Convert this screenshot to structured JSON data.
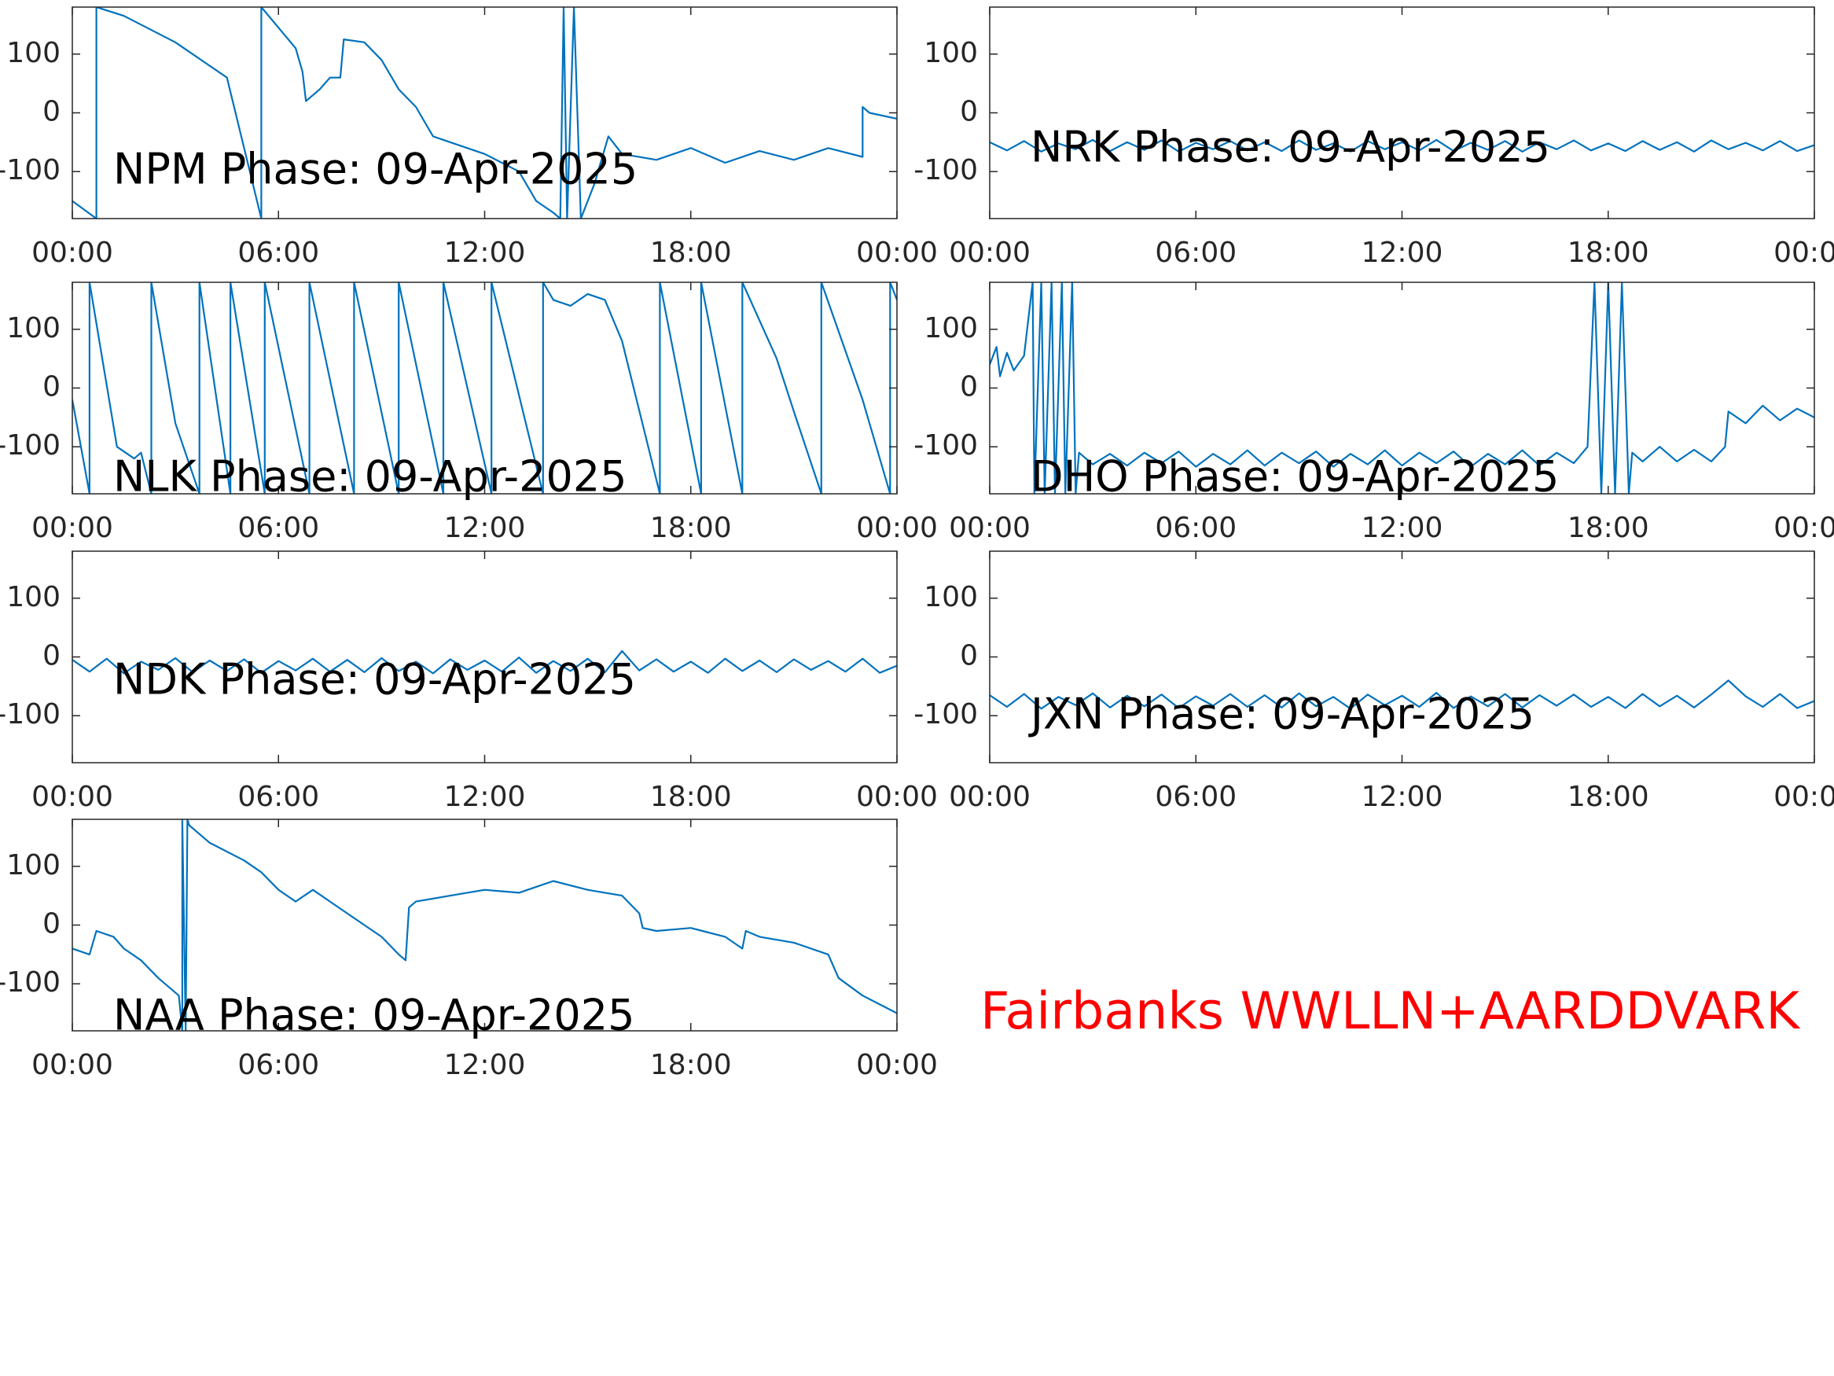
{
  "chart_data": [
    {
      "type": "line",
      "title": "NPM Phase: 09-Apr-2025",
      "color": "#0072bd",
      "x": [
        0,
        0.7,
        0.7,
        1.5,
        3,
        4.5,
        5.5,
        5.5,
        6.5,
        6.7,
        6.8,
        7.2,
        7.5,
        7.8,
        7.9,
        8.5,
        9,
        9.5,
        10,
        10.5,
        11,
        12,
        13,
        13.5,
        14,
        14.2,
        14.3,
        14.4,
        14.6,
        14.8,
        15.2,
        15.6,
        16,
        17,
        18,
        19,
        20,
        21,
        22,
        23,
        23,
        23.2,
        24
      ],
      "values": [
        -150,
        -180,
        180,
        165,
        120,
        60,
        -180,
        180,
        110,
        70,
        20,
        40,
        60,
        60,
        125,
        120,
        90,
        40,
        10,
        -40,
        -50,
        -70,
        -100,
        -150,
        -170,
        -180,
        180,
        -180,
        180,
        -180,
        -120,
        -40,
        -70,
        -80,
        -60,
        -85,
        -65,
        -80,
        -60,
        -75,
        10,
        0,
        -10
      ],
      "xlim": [
        0,
        24
      ],
      "xticks": [
        {
          "value": 0,
          "label": "00:00"
        },
        {
          "value": 6,
          "label": "06:00"
        },
        {
          "value": 12,
          "label": "12:00"
        },
        {
          "value": 18,
          "label": "18:00"
        },
        {
          "value": 24,
          "label": "00:00"
        }
      ],
      "ylim": [
        -180,
        180
      ],
      "yticks": [
        -100,
        0,
        100
      ]
    },
    {
      "type": "line",
      "title": "NRK Phase: 09-Apr-2025",
      "color": "#0072bd",
      "x": [
        0,
        0.5,
        1,
        1.5,
        2,
        2.5,
        3,
        3.5,
        4,
        4.5,
        5,
        5.5,
        6,
        6.5,
        7,
        7.5,
        8,
        8.5,
        9,
        9.5,
        10,
        10.5,
        11,
        11.5,
        12,
        12.5,
        13,
        13.5,
        14,
        14.5,
        15,
        15.5,
        16,
        16.5,
        17,
        17.5,
        18,
        18.5,
        19,
        19.5,
        20,
        20.5,
        21,
        21.5,
        22,
        22.5,
        23,
        23.5,
        24
      ],
      "values": [
        -50,
        -64,
        -48,
        -66,
        -52,
        -62,
        -46,
        -65,
        -50,
        -63,
        -47,
        -66,
        -51,
        -62,
        -48,
        -64,
        -50,
        -65,
        -47,
        -63,
        -52,
        -66,
        -48,
        -62,
        -50,
        -64,
        -46,
        -65,
        -51,
        -63,
        -48,
        -66,
        -50,
        -62,
        -47,
        -64,
        -52,
        -65,
        -48,
        -63,
        -50,
        -66,
        -47,
        -62,
        -51,
        -64,
        -48,
        -65,
        -55
      ],
      "xlim": [
        0,
        24
      ],
      "xticks": [
        {
          "value": 0,
          "label": "00:00"
        },
        {
          "value": 6,
          "label": "06:00"
        },
        {
          "value": 12,
          "label": "12:00"
        },
        {
          "value": 18,
          "label": "18:00"
        },
        {
          "value": 24,
          "label": "00:00"
        }
      ],
      "ylim": [
        -180,
        180
      ],
      "yticks": [
        -100,
        0,
        100
      ]
    },
    {
      "type": "line",
      "title": "NLK Phase: 09-Apr-2025",
      "color": "#0072bd",
      "x": [
        0,
        0.5,
        0.5,
        1.3,
        1.8,
        2.0,
        2.3,
        2.3,
        3.0,
        3.7,
        3.7,
        4.6,
        4.6,
        5.6,
        5.6,
        6.9,
        6.9,
        8.2,
        8.2,
        9.5,
        9.5,
        10.8,
        10.8,
        12.2,
        12.2,
        13.7,
        13.7,
        14,
        14.5,
        15,
        15.5,
        16,
        17.1,
        17.1,
        18.3,
        18.3,
        19.5,
        19.5,
        20.5,
        21,
        21.8,
        21.8,
        23.0,
        23.8,
        23.8,
        24
      ],
      "values": [
        -20,
        -180,
        180,
        -100,
        -120,
        -110,
        -180,
        180,
        -60,
        -180,
        180,
        -180,
        180,
        -180,
        180,
        -180,
        180,
        -180,
        180,
        -180,
        180,
        -180,
        180,
        -180,
        180,
        -180,
        180,
        150,
        140,
        160,
        150,
        80,
        -180,
        180,
        -180,
        180,
        -180,
        180,
        50,
        -40,
        -180,
        180,
        -20,
        -180,
        180,
        150
      ],
      "xlim": [
        0,
        24
      ],
      "xticks": [
        {
          "value": 0,
          "label": "00:00"
        },
        {
          "value": 6,
          "label": "06:00"
        },
        {
          "value": 12,
          "label": "12:00"
        },
        {
          "value": 18,
          "label": "18:00"
        },
        {
          "value": 24,
          "label": "00:00"
        }
      ],
      "ylim": [
        -180,
        180
      ],
      "yticks": [
        -100,
        0,
        100
      ]
    },
    {
      "type": "line",
      "title": "DHO Phase: 09-Apr-2025",
      "color": "#0072bd",
      "x": [
        0,
        0.2,
        0.3,
        0.5,
        0.7,
        1,
        1.25,
        1.3,
        1.5,
        1.6,
        1.8,
        1.9,
        2.1,
        2.2,
        2.4,
        2.5,
        2.6,
        3,
        3.5,
        4,
        4.5,
        5,
        5.5,
        6,
        6.5,
        7,
        7.5,
        8,
        8.5,
        9,
        9.5,
        10,
        10.5,
        11,
        11.5,
        12,
        12.5,
        13,
        13.5,
        14,
        14.5,
        15,
        15.5,
        16,
        16.5,
        17,
        17.4,
        17.6,
        17.8,
        18,
        18.2,
        18.4,
        18.6,
        18.7,
        19,
        19.5,
        20,
        20.5,
        21,
        21.4,
        21.5,
        22,
        22.5,
        23,
        23.5,
        24
      ],
      "values": [
        40,
        70,
        20,
        60,
        30,
        55,
        180,
        -180,
        180,
        -180,
        180,
        -180,
        180,
        -180,
        180,
        -180,
        -110,
        -130,
        -112,
        -132,
        -110,
        -128,
        -108,
        -134,
        -112,
        -130,
        -106,
        -132,
        -110,
        -128,
        -108,
        -134,
        -112,
        -130,
        -106,
        -132,
        -110,
        -128,
        -108,
        -134,
        -112,
        -130,
        -106,
        -132,
        -110,
        -128,
        -100,
        180,
        -180,
        180,
        -180,
        180,
        -180,
        -110,
        -125,
        -100,
        -125,
        -105,
        -125,
        -100,
        -40,
        -60,
        -30,
        -55,
        -35,
        -50
      ],
      "xlim": [
        0,
        24
      ],
      "xticks": [
        {
          "value": 0,
          "label": "00:00"
        },
        {
          "value": 6,
          "label": "06:00"
        },
        {
          "value": 12,
          "label": "12:00"
        },
        {
          "value": 18,
          "label": "18:00"
        },
        {
          "value": 24,
          "label": "00:00"
        }
      ],
      "ylim": [
        -180,
        180
      ],
      "yticks": [
        -100,
        0,
        100
      ]
    },
    {
      "type": "line",
      "title": "NDK Phase: 09-Apr-2025",
      "color": "#0072bd",
      "x": [
        0,
        0.5,
        1,
        1.5,
        2,
        2.5,
        3,
        3.5,
        4,
        4.5,
        5,
        5.5,
        6,
        6.5,
        7,
        7.5,
        8,
        8.5,
        9,
        9.5,
        10,
        10.5,
        11,
        11.5,
        12,
        12.5,
        13,
        13.5,
        14,
        14.5,
        15,
        15.5,
        16,
        16.5,
        17,
        17.5,
        18,
        18.5,
        19,
        19.5,
        20,
        20.5,
        21,
        21.5,
        22,
        22.5,
        23,
        23.5,
        24
      ],
      "values": [
        -5,
        -25,
        -3,
        -28,
        -8,
        -22,
        -2,
        -26,
        -6,
        -24,
        -4,
        -27,
        -7,
        -23,
        -3,
        -25,
        -5,
        -26,
        -2,
        -24,
        -8,
        -28,
        -4,
        -22,
        -6,
        -25,
        -1,
        -27,
        -7,
        -24,
        -3,
        -26,
        10,
        -23,
        -4,
        -25,
        -8,
        -27,
        -3,
        -24,
        -6,
        -26,
        -4,
        -22,
        -7,
        -25,
        -3,
        -27,
        -15
      ],
      "xlim": [
        0,
        24
      ],
      "xticks": [
        {
          "value": 0,
          "label": "00:00"
        },
        {
          "value": 6,
          "label": "06:00"
        },
        {
          "value": 12,
          "label": "12:00"
        },
        {
          "value": 18,
          "label": "18:00"
        },
        {
          "value": 24,
          "label": "00:00"
        }
      ],
      "ylim": [
        -180,
        180
      ],
      "yticks": [
        -100,
        0,
        100
      ]
    },
    {
      "type": "line",
      "title": "JXN Phase: 09-Apr-2025",
      "color": "#0072bd",
      "x": [
        0,
        0.5,
        1,
        1.5,
        2,
        2.5,
        3,
        3.5,
        4,
        4.5,
        5,
        5.5,
        6,
        6.5,
        7,
        7.5,
        8,
        8.5,
        9,
        9.5,
        10,
        10.5,
        11,
        11.5,
        12,
        12.5,
        13,
        13.5,
        14,
        14.5,
        15,
        15.5,
        16,
        16.5,
        17,
        17.5,
        18,
        18.5,
        19,
        19.5,
        20,
        20.5,
        21,
        21.5,
        22,
        22.5,
        23,
        23.5,
        24
      ],
      "values": [
        -65,
        -85,
        -63,
        -88,
        -68,
        -82,
        -62,
        -86,
        -66,
        -84,
        -64,
        -87,
        -67,
        -83,
        -63,
        -85,
        -65,
        -86,
        -62,
        -84,
        -68,
        -88,
        -64,
        -82,
        -66,
        -85,
        -61,
        -87,
        -67,
        -84,
        -63,
        -86,
        -65,
        -83,
        -64,
        -85,
        -68,
        -87,
        -63,
        -84,
        -66,
        -86,
        -64,
        -40,
        -67,
        -85,
        -63,
        -87,
        -75
      ],
      "xlim": [
        0,
        24
      ],
      "xticks": [
        {
          "value": 0,
          "label": "00:00"
        },
        {
          "value": 6,
          "label": "06:00"
        },
        {
          "value": 12,
          "label": "12:00"
        },
        {
          "value": 18,
          "label": "18:00"
        },
        {
          "value": 24,
          "label": "00:00"
        }
      ],
      "ylim": [
        -180,
        180
      ],
      "yticks": [
        -100,
        0,
        100
      ]
    },
    {
      "type": "line",
      "title": "NAA Phase: 09-Apr-2025",
      "color": "#0072bd",
      "x": [
        0,
        0.5,
        0.7,
        1.2,
        1.5,
        2,
        2.5,
        3.1,
        3.2,
        3.2,
        3.3,
        3.35,
        3.4,
        4,
        5,
        5.5,
        6,
        6.5,
        7,
        7.5,
        8,
        8.5,
        9,
        9.5,
        9.7,
        9.8,
        10,
        11,
        12,
        13,
        13.5,
        14,
        15,
        16,
        16.5,
        16.6,
        17,
        18,
        19,
        19.5,
        19.6,
        20,
        21,
        22,
        22.3,
        23,
        24
      ],
      "values": [
        -40,
        -50,
        -10,
        -20,
        -40,
        -60,
        -90,
        -120,
        -180,
        180,
        -180,
        180,
        170,
        140,
        110,
        90,
        60,
        40,
        60,
        40,
        20,
        0,
        -20,
        -50,
        -60,
        30,
        40,
        50,
        60,
        55,
        65,
        75,
        60,
        50,
        20,
        -5,
        -10,
        -5,
        -20,
        -40,
        -10,
        -20,
        -30,
        -50,
        -90,
        -120,
        -150
      ],
      "xlim": [
        0,
        24
      ],
      "xticks": [
        {
          "value": 0,
          "label": "00:00"
        },
        {
          "value": 6,
          "label": "06:00"
        },
        {
          "value": 12,
          "label": "12:00"
        },
        {
          "value": 18,
          "label": "18:00"
        },
        {
          "value": 24,
          "label": "00:00"
        }
      ],
      "ylim": [
        -180,
        180
      ],
      "yticks": [
        -100,
        0,
        100
      ]
    }
  ],
  "annotation": {
    "text": "Fairbanks WWLLN+AARDDVARK",
    "color": "#ff0000"
  }
}
